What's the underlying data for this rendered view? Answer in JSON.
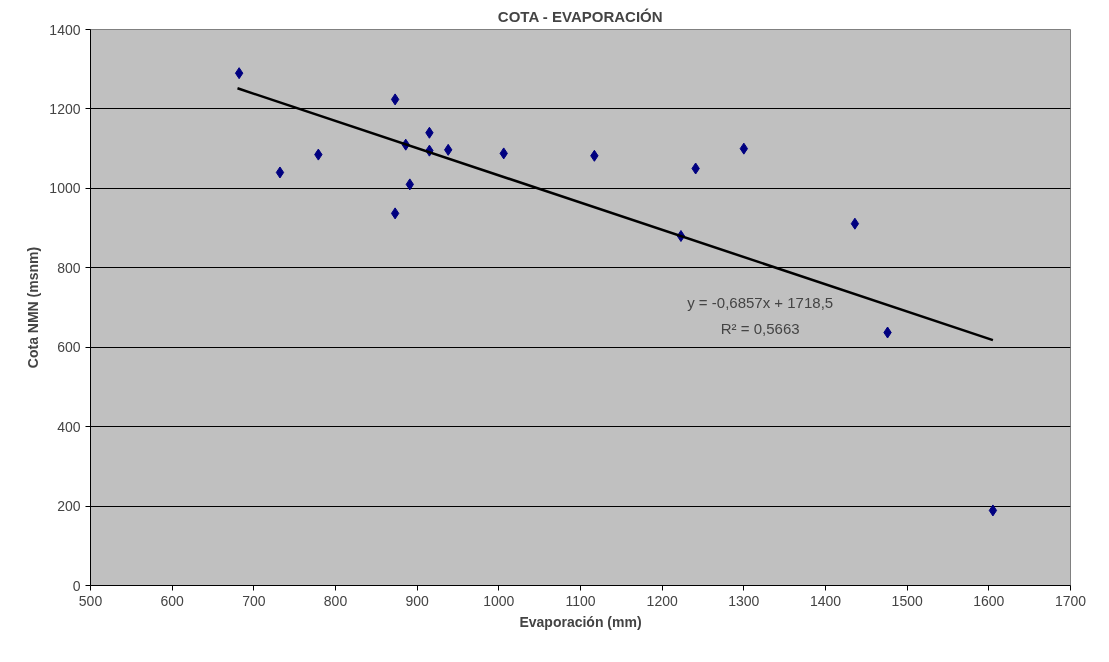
{
  "chart_data": {
    "type": "scatter",
    "title": "COTA - EVAPORACIÓN",
    "xlabel": "Evaporación (mm)",
    "ylabel": "Cota NMN (msnm)",
    "xlim": [
      500,
      1700
    ],
    "xticks": [
      500,
      600,
      700,
      800,
      900,
      1000,
      1100,
      1200,
      1300,
      1400,
      1500,
      1600,
      1700
    ],
    "ylim": [
      0,
      1400
    ],
    "yticks": [
      0,
      200,
      400,
      600,
      800,
      1000,
      1200,
      1400
    ],
    "grid": "y",
    "marker": "diamond",
    "series": [
      {
        "color": "#000080",
        "x": [
          682,
          732,
          779,
          873,
          873,
          886,
          891,
          915,
          915,
          938,
          1006,
          1117,
          1223,
          1241,
          1300,
          1436,
          1476,
          1605
        ],
        "values": [
          1290,
          1040,
          1085,
          1224,
          937,
          1110,
          1010,
          1140,
          1095,
          1097,
          1088,
          1082,
          880,
          1050,
          1100,
          911,
          637,
          189
        ]
      },
      {
        "type": "line",
        "color": "#000000",
        "x": [
          680,
          1605
        ],
        "values": [
          1252,
          618
        ],
        "marker": "none"
      }
    ],
    "annotations": [
      "y = -0,6857x + 1718,5",
      "R² = 0,5663"
    ]
  }
}
